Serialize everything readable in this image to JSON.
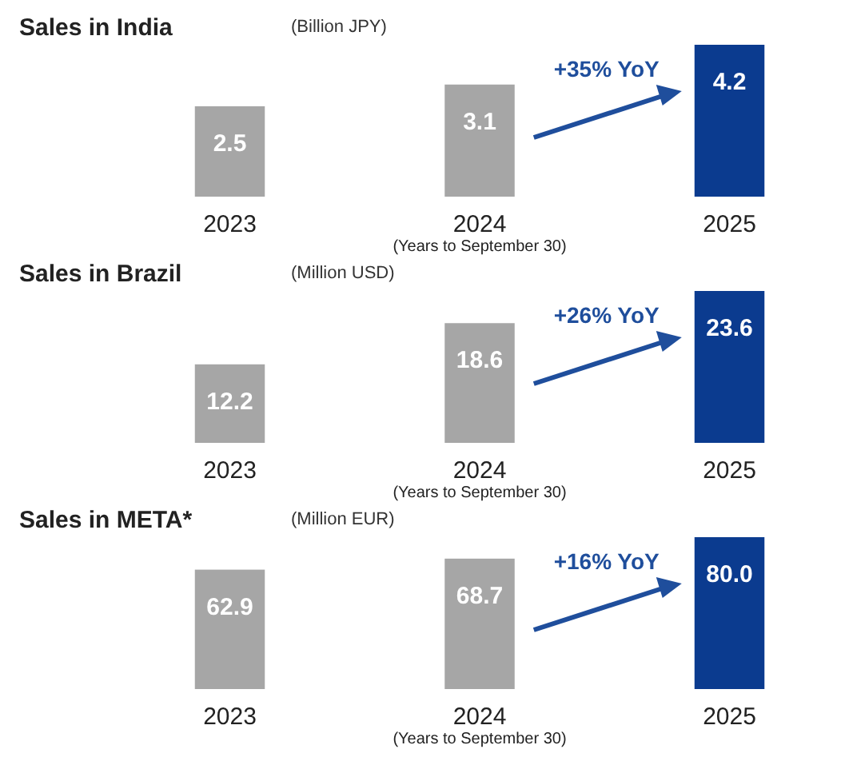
{
  "chart_data": [
    {
      "type": "bar",
      "title": "Sales in India",
      "subtitle": "(Billion JPY)",
      "categories": [
        "2023",
        "2024",
        "2025"
      ],
      "values": [
        2.5,
        3.1,
        4.2
      ],
      "value_labels": [
        "2.5",
        "3.1",
        "4.2"
      ],
      "colors": [
        "#a6a6a6",
        "#a6a6a6",
        "#0b3b8f"
      ],
      "annotations": [
        "+35% YoY",
        "(Years to September 30)"
      ]
    },
    {
      "type": "bar",
      "title": "Sales in Brazil",
      "subtitle": "(Million USD)",
      "categories": [
        "2023",
        "2024",
        "2025"
      ],
      "values": [
        12.2,
        18.6,
        23.6
      ],
      "value_labels": [
        "12.2",
        "18.6",
        "23.6"
      ],
      "colors": [
        "#a6a6a6",
        "#a6a6a6",
        "#0b3b8f"
      ],
      "annotations": [
        "+26% YoY",
        "(Years to September 30)"
      ]
    },
    {
      "type": "bar",
      "title": "Sales in META*",
      "subtitle": "(Million EUR)",
      "categories": [
        "2023",
        "2024",
        "2025"
      ],
      "values": [
        62.9,
        68.7,
        80.0
      ],
      "value_labels": [
        "62.9",
        "68.7",
        "80.0"
      ],
      "colors": [
        "#a6a6a6",
        "#a6a6a6",
        "#0b3b8f"
      ],
      "annotations": [
        "+16% YoY",
        "(Years to September 30)"
      ]
    }
  ]
}
